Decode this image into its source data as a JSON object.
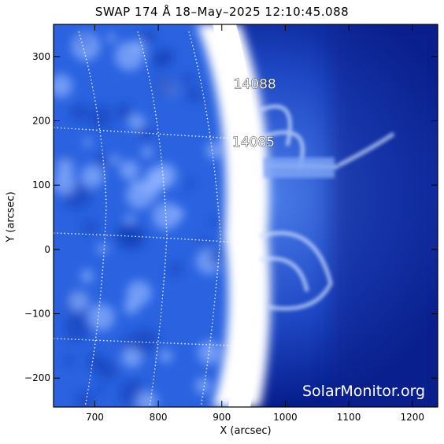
{
  "title": "SWAP 174 Å 18–May–2025 12:10:45.088",
  "watermark": "SolarMonitor.org",
  "colors": {
    "frame": "#000000",
    "grid": "#ffffff",
    "disk_bright": "#ffffff",
    "background_dark": "#001a8a"
  },
  "chart_data": {
    "type": "heatmap",
    "xlabel": "X (arcsec)",
    "ylabel": "Y (arcsec)",
    "xlim": [
      635,
      1240
    ],
    "ylim": [
      -245,
      350
    ],
    "xticks": [
      700,
      800,
      900,
      1000,
      1100,
      1200
    ],
    "yticks": [
      -200,
      -100,
      0,
      100,
      200,
      300
    ],
    "annotations": [
      {
        "text": "14088",
        "x": 952,
        "y": 250
      },
      {
        "text": "14085",
        "x": 950,
        "y": 160
      }
    ]
  }
}
